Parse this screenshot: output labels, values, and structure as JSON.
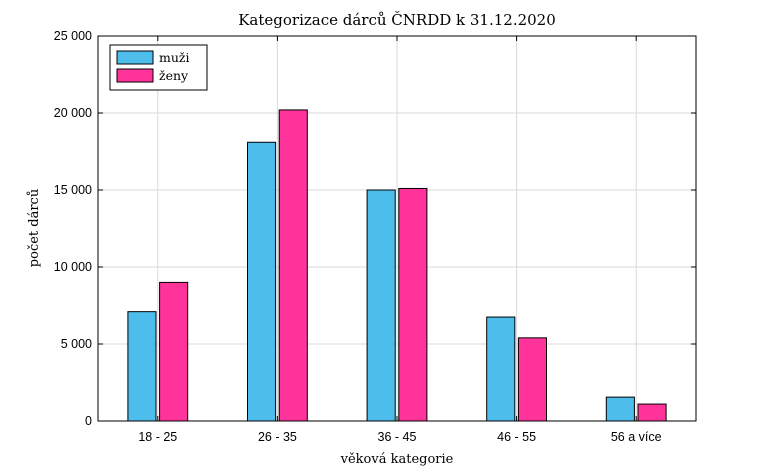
{
  "chart_data": {
    "type": "bar",
    "title": "Kategorizace dárců ČNRDD k 31.12.2020",
    "xlabel": "věková kategorie",
    "ylabel": "počet dárců",
    "categories": [
      "18 - 25",
      "26 - 35",
      "36 - 45",
      "46 - 55",
      "56 a více"
    ],
    "series": [
      {
        "name": "muži",
        "color": "#4dbeeb",
        "values": [
          7100,
          18100,
          15000,
          6750,
          1550
        ]
      },
      {
        "name": "ženy",
        "color": "#ff3399",
        "values": [
          9000,
          20200,
          15100,
          5400,
          1100
        ]
      }
    ],
    "ylim": [
      0,
      25000
    ],
    "yticks": [
      0,
      5000,
      10000,
      15000,
      20000,
      25000
    ],
    "ytick_labels": [
      "0",
      "5 000",
      "10 000",
      "15 000",
      "20 000",
      "25 000"
    ],
    "grid": true,
    "legend_position": "top-left"
  }
}
